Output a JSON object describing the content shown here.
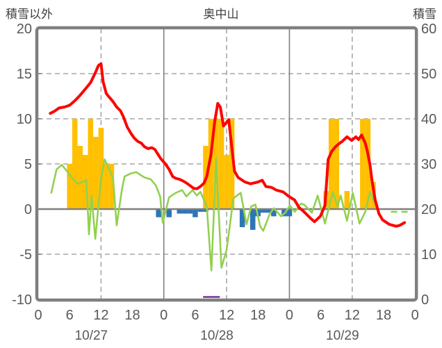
{
  "header": {
    "left_axis_title": "積雪以外",
    "chart_title": "奥中山",
    "right_axis_title": "積雪"
  },
  "chart_data": {
    "type": "combo (bars + lines)",
    "title": "奥中山",
    "left_axis": {
      "label": "積雪以外",
      "min": -10,
      "max": 20,
      "ticks": [
        20,
        15,
        10,
        5,
        0,
        -5,
        -10
      ]
    },
    "right_axis": {
      "label": "積雪",
      "min": 0,
      "max": 60,
      "ticks": [
        60,
        50,
        40,
        30,
        20,
        10,
        0
      ]
    },
    "x_axis": {
      "total_hours": 72,
      "hour_tick_positions": [
        0,
        6,
        12,
        18,
        24,
        30,
        36,
        42,
        48,
        54,
        60,
        66,
        72
      ],
      "hour_tick_labels": [
        "0",
        "6",
        "12",
        "18",
        "0",
        "6",
        "12",
        "18",
        "0",
        "6",
        "12",
        "18",
        "0"
      ],
      "day_labels": [
        "10/27",
        "10/28",
        "10/29"
      ],
      "day_label_positions": [
        12,
        36,
        60
      ],
      "solid_grid_hours": [
        24,
        48
      ],
      "dashed_grid_hours": [
        12,
        36,
        60
      ]
    },
    "grid": {
      "horizontal_dashed_at": [
        15,
        10,
        5,
        -5
      ],
      "zero_line_at": 0
    },
    "colors": {
      "red_line": "#FF0000",
      "green_line": "#92D050",
      "yellow_bars": "#FFC000",
      "blue_bars": "#2E75B6",
      "purple_line": "#7030A0",
      "frame": "#7F7F7F",
      "grid": "#A6A6A6",
      "text": "#595959"
    },
    "series": {
      "yellow_bars": {
        "name": "precipitation-bars",
        "points": [
          [
            6,
            5
          ],
          [
            7,
            10
          ],
          [
            8,
            7
          ],
          [
            9,
            6
          ],
          [
            10,
            10
          ],
          [
            11,
            8
          ],
          [
            12,
            9
          ],
          [
            13,
            5
          ],
          [
            14,
            5
          ],
          [
            32,
            7
          ],
          [
            33,
            10
          ],
          [
            34,
            10
          ],
          [
            35,
            10
          ],
          [
            36,
            6
          ],
          [
            37,
            10
          ],
          [
            55,
            2
          ],
          [
            56,
            10
          ],
          [
            57,
            10
          ],
          [
            59,
            2
          ],
          [
            62,
            10
          ],
          [
            63,
            10
          ],
          [
            64,
            3
          ]
        ]
      },
      "blue_bars": {
        "name": "negative-bars",
        "points": [
          [
            23,
            -0.9
          ],
          [
            25,
            -0.9
          ],
          [
            27,
            -0.5
          ],
          [
            28,
            -0.5
          ],
          [
            29,
            -0.5
          ],
          [
            30,
            -0.9
          ],
          [
            31,
            -0.3
          ],
          [
            32,
            -0.3
          ],
          [
            39,
            -2
          ],
          [
            41,
            -2.3
          ],
          [
            42,
            -0.8
          ],
          [
            43,
            -0.4
          ],
          [
            44,
            -0.4
          ],
          [
            45,
            -0.8
          ],
          [
            47,
            -0.8
          ],
          [
            48,
            -0.8
          ]
        ]
      },
      "red_line": {
        "name": "temperature-line",
        "points": [
          [
            2.3,
            10.6
          ],
          [
            3,
            10.8
          ],
          [
            4,
            11.2
          ],
          [
            5,
            11.3
          ],
          [
            6,
            11.5
          ],
          [
            7,
            12.0
          ],
          [
            8,
            12.6
          ],
          [
            9,
            13.3
          ],
          [
            10,
            14.0
          ],
          [
            11,
            15.2
          ],
          [
            11.5,
            15.9
          ],
          [
            12,
            16.1
          ],
          [
            12.4,
            14.1
          ],
          [
            13,
            12.8
          ],
          [
            13.7,
            12.3
          ],
          [
            14.3,
            11.9
          ],
          [
            15,
            11.3
          ],
          [
            15.7,
            10.9
          ],
          [
            16.3,
            10.2
          ],
          [
            17,
            9.1
          ],
          [
            17.7,
            8.4
          ],
          [
            18.3,
            7.9
          ],
          [
            19,
            7.5
          ],
          [
            19.7,
            7.3
          ],
          [
            20.3,
            6.9
          ],
          [
            21,
            6.7
          ],
          [
            21.7,
            6.8
          ],
          [
            22.3,
            6.6
          ],
          [
            23.4,
            5.6
          ],
          [
            24.3,
            5.0
          ],
          [
            25,
            4.4
          ],
          [
            25.7,
            3.6
          ],
          [
            26.3,
            3.4
          ],
          [
            27,
            3.3
          ],
          [
            27.7,
            3.1
          ],
          [
            28.3,
            2.9
          ],
          [
            29,
            2.6
          ],
          [
            29.7,
            2.3
          ],
          [
            30.3,
            2.25
          ],
          [
            31,
            2.5
          ],
          [
            31.7,
            2.9
          ],
          [
            32.2,
            3.6
          ],
          [
            33,
            6.0
          ],
          [
            33.7,
            9.6
          ],
          [
            34.3,
            11.7
          ],
          [
            34.8,
            11.3
          ],
          [
            35.4,
            9.2
          ],
          [
            36.4,
            9.9
          ],
          [
            37.5,
            4.2
          ],
          [
            38.2,
            3.5
          ],
          [
            39.5,
            3.0
          ],
          [
            40.6,
            2.8
          ],
          [
            42,
            3.0
          ],
          [
            42.8,
            3.2
          ],
          [
            43.5,
            2.5
          ],
          [
            44.6,
            2.4
          ],
          [
            45.5,
            2.1
          ],
          [
            46.8,
            1.9
          ],
          [
            47.9,
            1.4
          ],
          [
            49,
            1.0
          ],
          [
            49.8,
            0.2
          ],
          [
            50.8,
            -0.3
          ],
          [
            52,
            -1.0
          ],
          [
            52.8,
            -1.4
          ],
          [
            53.9,
            -0.8
          ],
          [
            54.8,
            0.4
          ],
          [
            55.4,
            5.5
          ],
          [
            56.1,
            6.4
          ],
          [
            56.8,
            6.9
          ],
          [
            57.4,
            7.2
          ],
          [
            58.1,
            7.5
          ],
          [
            59,
            8.0
          ],
          [
            59.9,
            7.6
          ],
          [
            60.7,
            8.0
          ],
          [
            61.2,
            7.7
          ],
          [
            61.8,
            8.2
          ],
          [
            62.5,
            7.3
          ],
          [
            62.9,
            6.4
          ],
          [
            63.4,
            4.9
          ],
          [
            63.8,
            3.1
          ],
          [
            64.4,
            1.0
          ],
          [
            65.1,
            -0.5
          ],
          [
            65.8,
            -1.2
          ],
          [
            67.1,
            -1.7
          ],
          [
            68.4,
            -1.9
          ],
          [
            69.1,
            -1.8
          ],
          [
            70,
            -1.5
          ]
        ]
      },
      "green_line": {
        "name": "green-line",
        "points": [
          [
            2.5,
            1.8
          ],
          [
            3.5,
            4.4
          ],
          [
            4.5,
            4.9
          ],
          [
            5.5,
            4.2
          ],
          [
            6.5,
            3.4
          ],
          [
            7.5,
            2.8
          ],
          [
            8.5,
            3.0
          ],
          [
            9.2,
            3.2
          ],
          [
            9.7,
            -2.8
          ],
          [
            10.2,
            1.5
          ],
          [
            10.9,
            -3.3
          ],
          [
            12,
            3.3
          ],
          [
            12.7,
            5.5
          ],
          [
            13.5,
            4.5
          ],
          [
            14.3,
            3.4
          ],
          [
            15,
            -1.8
          ],
          [
            16,
            2.2
          ],
          [
            16.5,
            3.6
          ],
          [
            17.5,
            3.9
          ],
          [
            18.7,
            4.1
          ],
          [
            19.5,
            3.8
          ],
          [
            20.3,
            3.5
          ],
          [
            21.5,
            3.3
          ],
          [
            22.5,
            2.6
          ],
          [
            23.3,
            1.4
          ],
          [
            23.8,
            -1.5
          ],
          [
            25,
            1.3
          ],
          [
            26.3,
            1.8
          ],
          [
            27.5,
            2.1
          ],
          [
            28.3,
            1.4
          ],
          [
            29.5,
            2.1
          ],
          [
            30.3,
            1.5
          ],
          [
            31,
            1.9
          ],
          [
            32.2,
            0.3
          ],
          [
            33.1,
            -6.8
          ],
          [
            34,
            5.6
          ],
          [
            35,
            -6.5
          ],
          [
            36,
            -4.5
          ],
          [
            37.3,
            1.2
          ],
          [
            38.7,
            1.8
          ],
          [
            39.8,
            -1.7
          ],
          [
            40.7,
            0.3
          ],
          [
            41.5,
            0.5
          ],
          [
            42.4,
            -1.9
          ],
          [
            43,
            -2.4
          ],
          [
            44.2,
            -0.6
          ],
          [
            45,
            0.1
          ],
          [
            46.4,
            -0.8
          ],
          [
            47.2,
            -0.4
          ],
          [
            48.1,
            0.4
          ],
          [
            49,
            -0.3
          ],
          [
            50.2,
            0.6
          ],
          [
            50.8,
            0.5
          ],
          [
            52.3,
            -0.4
          ],
          [
            53.4,
            1.5
          ],
          [
            54.8,
            -1.6
          ],
          [
            56.3,
            1.9
          ],
          [
            57.2,
            0.3
          ],
          [
            57.8,
            1.5
          ],
          [
            59,
            -1.3
          ],
          [
            60.1,
            1.8
          ],
          [
            61.4,
            -1.6
          ],
          [
            62.5,
            -0.3
          ],
          [
            63.4,
            1.9
          ],
          [
            64.3,
            0.7
          ],
          [
            65.2,
            -0.4
          ]
        ],
        "dashed_tail": [
          [
            67.4,
            -0.3
          ],
          [
            70.6,
            -0.3
          ]
        ]
      },
      "purple_line": {
        "name": "snow-depth-line",
        "points": [
          [
            31.5,
            -10
          ],
          [
            34.7,
            -10
          ]
        ]
      }
    }
  }
}
